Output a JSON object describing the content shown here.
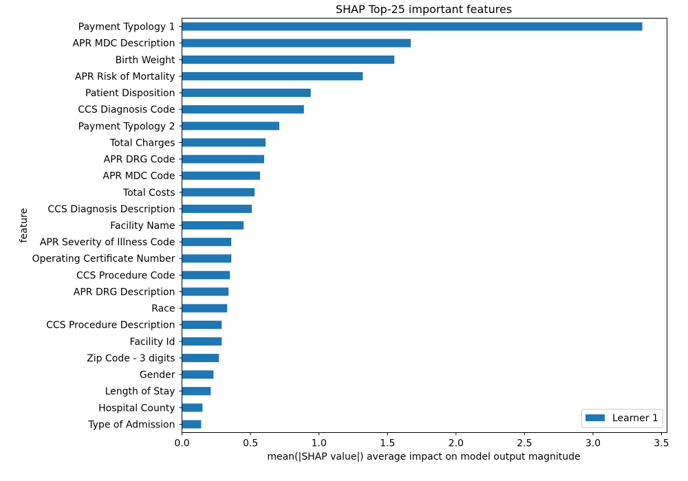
{
  "chart_data": {
    "type": "bar",
    "orientation": "horizontal",
    "title": "SHAP Top-25 important features",
    "xlabel": "mean(|SHAP value|) average impact on model output magnitude",
    "ylabel": "feature",
    "xlim": [
      0.0,
      3.54
    ],
    "xticks": [
      0.0,
      0.5,
      1.0,
      1.5,
      2.0,
      2.5,
      3.0,
      3.5
    ],
    "xtick_labels": [
      "0.0",
      "0.5",
      "1.0",
      "1.5",
      "2.0",
      "2.5",
      "3.0",
      "3.5"
    ],
    "grid": false,
    "legend_position": "lower-right",
    "categories": [
      "Payment Typology 1",
      "APR MDC Description",
      "Birth Weight",
      "APR Risk of Mortality",
      "Patient Disposition",
      "CCS Diagnosis Code",
      "Payment Typology 2",
      "Total Charges",
      "APR DRG Code",
      "APR MDC Code",
      "Total Costs",
      "CCS Diagnosis Description",
      "Facility Name",
      "APR Severity of Illness Code",
      "Operating Certificate Number",
      "CCS Procedure Code",
      "APR DRG Description",
      "Race",
      "CCS Procedure Description",
      "Facility Id",
      "Zip Code - 3 digits",
      "Gender",
      "Length of Stay",
      "Hospital County",
      "Type of Admission"
    ],
    "series": [
      {
        "name": "Learner 1",
        "color": "#1f77b4",
        "values": [
          3.36,
          1.67,
          1.55,
          1.32,
          0.94,
          0.89,
          0.71,
          0.61,
          0.6,
          0.57,
          0.53,
          0.51,
          0.45,
          0.36,
          0.36,
          0.35,
          0.34,
          0.33,
          0.29,
          0.29,
          0.27,
          0.23,
          0.21,
          0.15,
          0.14
        ]
      }
    ]
  }
}
